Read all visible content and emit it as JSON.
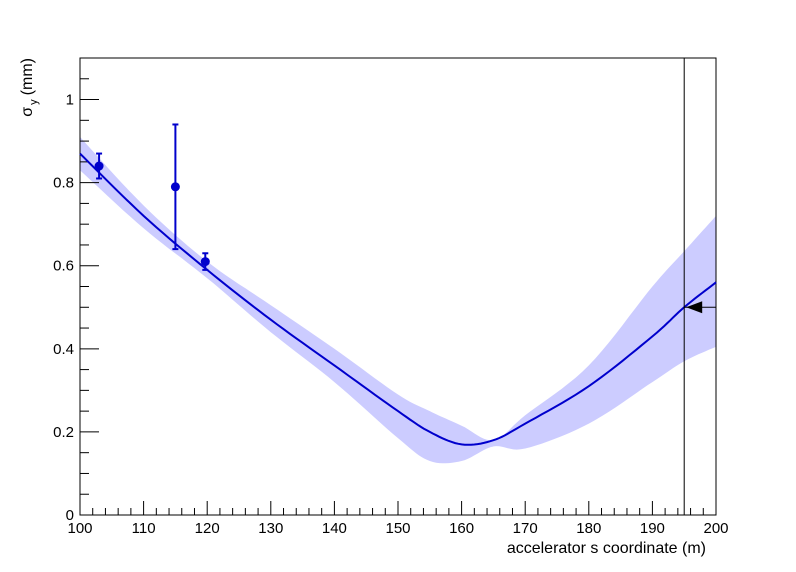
{
  "chart_data": {
    "type": "line",
    "xlabel": "accelerator s coordinate (m)",
    "ylabel_symbol": "σ",
    "ylabel_subscript": "y",
    "ylabel_unit": "(mm)",
    "xlim": [
      100,
      200
    ],
    "ylim": [
      0,
      1.1
    ],
    "xticks": [
      100,
      110,
      120,
      130,
      140,
      150,
      160,
      170,
      180,
      190,
      200
    ],
    "yticks": [
      0,
      0.2,
      0.4,
      0.6,
      0.8,
      1
    ],
    "ytick_labels": [
      "0",
      "0.2",
      "0.4",
      "0.6",
      "0.8",
      "1"
    ],
    "grid": false,
    "fit": {
      "x": [
        100,
        110,
        120,
        130,
        140,
        150,
        155,
        160,
        165,
        170,
        180,
        190,
        195,
        200
      ],
      "y": [
        0.87,
        0.72,
        0.59,
        0.47,
        0.36,
        0.25,
        0.2,
        0.17,
        0.18,
        0.22,
        0.31,
        0.43,
        0.5,
        0.56
      ],
      "band_upper": [
        0.91,
        0.745,
        0.61,
        0.505,
        0.4,
        0.29,
        0.25,
        0.215,
        0.18,
        0.24,
        0.36,
        0.55,
        0.635,
        0.72
      ],
      "band_lower": [
        0.83,
        0.69,
        0.57,
        0.44,
        0.32,
        0.185,
        0.13,
        0.13,
        0.165,
        0.16,
        0.22,
        0.32,
        0.37,
        0.405
      ],
      "color": "#0000cc",
      "band_color": "#ccccff"
    },
    "points": [
      {
        "x": 103,
        "y": 0.84,
        "err": 0.03
      },
      {
        "x": 115,
        "y": 0.79,
        "err": 0.15
      },
      {
        "x": 119.7,
        "y": 0.61,
        "err": 0.02
      }
    ],
    "vertical_marker": {
      "x": 195
    },
    "target_marker": {
      "x": 195,
      "y": 0.5
    }
  }
}
